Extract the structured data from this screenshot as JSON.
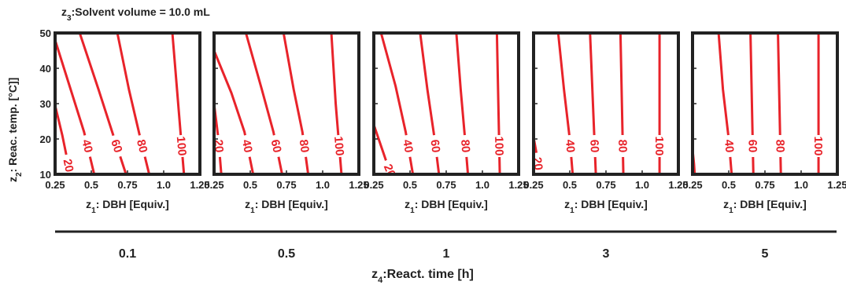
{
  "chart_data": {
    "type": "contour",
    "title": "z3:Solvent volume = 10.0 mL",
    "title_parts": {
      "var": "z",
      "sub": "3",
      "rest": ":Solvent volume = 10.0 mL"
    },
    "ylabel": "z2: Reac. temp. [°C]]",
    "ylabel_parts": {
      "var": "z",
      "sub": "2",
      "rest": ": Reac. temp. [°C]]"
    },
    "xlabel": "z1: DBH [Equiv.]",
    "xlabel_parts": {
      "var": "z",
      "sub": "1",
      "rest": ": DBH [Equiv.]"
    },
    "xlim": [
      0.25,
      1.25
    ],
    "ylim": [
      10,
      50
    ],
    "xticks": [
      "0.25",
      "0.5",
      "0.75",
      "1.0",
      "1.25"
    ],
    "xtick_values": [
      0.25,
      0.5,
      0.75,
      1.0,
      1.25
    ],
    "yticks": [
      "10",
      "20",
      "30",
      "40",
      "50"
    ],
    "ytick_values": [
      10,
      20,
      30,
      40,
      50
    ],
    "contour_levels": [
      "20",
      "40",
      "60",
      "80",
      "100"
    ],
    "line_color": "#e8232a",
    "frame_color": "#222222",
    "outer_axis": {
      "label": "z4:React. time [h]",
      "label_parts": {
        "var": "z",
        "sub": "4",
        "rest": ":React. time [h]"
      },
      "categories": [
        "0.1",
        "0.5",
        "1",
        "3",
        "5"
      ]
    },
    "panels": [
      {
        "reaction_time": "0.1",
        "contours": [
          {
            "level": "20",
            "points": [
              [
                0.25,
                29.5
              ],
              [
                0.3,
                21
              ],
              [
                0.33,
                15
              ],
              [
                0.355,
                10
              ]
            ]
          },
          {
            "level": "40",
            "points": [
              [
                0.25,
                48
              ],
              [
                0.35,
                35
              ],
              [
                0.45,
                22
              ],
              [
                0.52,
                10
              ]
            ]
          },
          {
            "level": "60",
            "points": [
              [
                0.42,
                50
              ],
              [
                0.55,
                34
              ],
              [
                0.66,
                20
              ],
              [
                0.74,
                10
              ]
            ]
          },
          {
            "level": "80",
            "points": [
              [
                0.68,
                50
              ],
              [
                0.76,
                34
              ],
              [
                0.84,
                20
              ],
              [
                0.9,
                10
              ]
            ]
          },
          {
            "level": "100",
            "points": [
              [
                1.06,
                50
              ],
              [
                1.1,
                30
              ],
              [
                1.12,
                20
              ],
              [
                1.14,
                10
              ]
            ]
          }
        ]
      },
      {
        "reaction_time": "0.5",
        "contours": [
          {
            "level": "20",
            "points": [
              [
                0.25,
                30
              ],
              [
                0.28,
                20
              ],
              [
                0.3,
                10
              ]
            ]
          },
          {
            "level": "40",
            "points": [
              [
                0.25,
                45
              ],
              [
                0.37,
                33
              ],
              [
                0.46,
                22
              ],
              [
                0.52,
                10
              ]
            ]
          },
          {
            "level": "60",
            "points": [
              [
                0.47,
                50
              ],
              [
                0.58,
                34
              ],
              [
                0.66,
                22
              ],
              [
                0.72,
                10
              ]
            ]
          },
          {
            "level": "80",
            "points": [
              [
                0.73,
                50
              ],
              [
                0.8,
                34
              ],
              [
                0.86,
                22
              ],
              [
                0.9,
                10
              ]
            ]
          },
          {
            "level": "100",
            "points": [
              [
                1.06,
                50
              ],
              [
                1.09,
                30
              ],
              [
                1.11,
                20
              ],
              [
                1.13,
                10
              ]
            ]
          }
        ]
      },
      {
        "reaction_time": "1",
        "contours": [
          {
            "level": "20",
            "points": [
              [
                0.25,
                24
              ],
              [
                0.3,
                18
              ],
              [
                0.35,
                12
              ],
              [
                0.37,
                10
              ]
            ]
          },
          {
            "level": "40",
            "points": [
              [
                0.3,
                50
              ],
              [
                0.4,
                35
              ],
              [
                0.47,
                22
              ],
              [
                0.52,
                10
              ]
            ]
          },
          {
            "level": "60",
            "points": [
              [
                0.57,
                50
              ],
              [
                0.62,
                34
              ],
              [
                0.67,
                20
              ],
              [
                0.7,
                10
              ]
            ]
          },
          {
            "level": "80",
            "points": [
              [
                0.82,
                50
              ],
              [
                0.85,
                34
              ],
              [
                0.88,
                20
              ],
              [
                0.9,
                10
              ]
            ]
          },
          {
            "level": "100",
            "points": [
              [
                1.1,
                50
              ],
              [
                1.11,
                30
              ],
              [
                1.12,
                10
              ]
            ]
          }
        ]
      },
      {
        "reaction_time": "3",
        "contours": [
          {
            "level": "20",
            "points": [
              [
                0.25,
                20.5
              ],
              [
                0.27,
                16
              ],
              [
                0.29,
                10
              ]
            ]
          },
          {
            "level": "40",
            "points": [
              [
                0.42,
                50
              ],
              [
                0.46,
                34
              ],
              [
                0.5,
                20
              ],
              [
                0.52,
                10
              ]
            ]
          },
          {
            "level": "60",
            "points": [
              [
                0.64,
                50
              ],
              [
                0.66,
                30
              ],
              [
                0.68,
                10
              ]
            ]
          },
          {
            "level": "80",
            "points": [
              [
                0.85,
                50
              ],
              [
                0.86,
                30
              ],
              [
                0.87,
                10
              ]
            ]
          },
          {
            "level": "100",
            "points": [
              [
                1.12,
                50
              ],
              [
                1.12,
                30
              ],
              [
                1.12,
                10
              ]
            ]
          }
        ]
      },
      {
        "reaction_time": "5",
        "contours": [
          {
            "level": "40",
            "points": [
              [
                0.43,
                50
              ],
              [
                0.46,
                34
              ],
              [
                0.5,
                20
              ],
              [
                0.52,
                10
              ]
            ]
          },
          {
            "level": "60",
            "points": [
              [
                0.65,
                50
              ],
              [
                0.66,
                30
              ],
              [
                0.67,
                10
              ]
            ]
          },
          {
            "level": "80",
            "points": [
              [
                0.84,
                50
              ],
              [
                0.85,
                30
              ],
              [
                0.86,
                10
              ]
            ]
          },
          {
            "level": "100",
            "points": [
              [
                1.12,
                50
              ],
              [
                1.12,
                30
              ],
              [
                1.12,
                10
              ]
            ]
          },
          {
            "level": "",
            "points": [
              [
                0.25,
                17
              ],
              [
                0.26,
                13
              ],
              [
                0.265,
                10
              ]
            ]
          }
        ]
      }
    ]
  }
}
